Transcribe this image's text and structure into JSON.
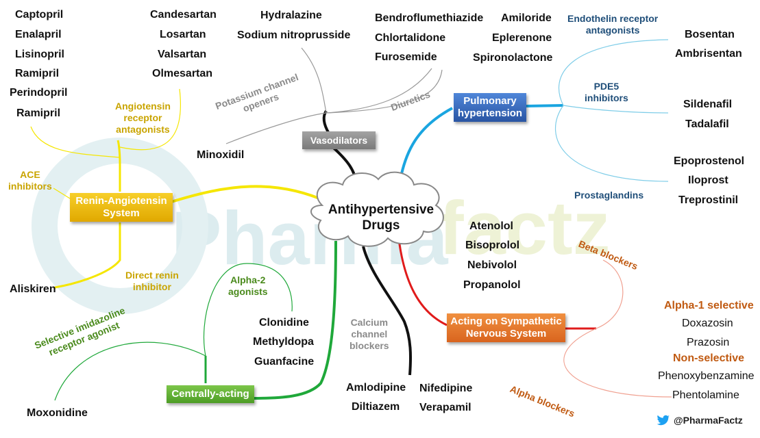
{
  "center": {
    "line1": "Antihypertensive",
    "line2": "Drugs"
  },
  "watermark": {
    "left": "Pharma",
    "right": "factz"
  },
  "credit": "@PharmaFactz",
  "colors": {
    "yellow": "#f5e600",
    "gray_box": "#8c8c8c",
    "blue_box": "#2f5fae",
    "orange_box": "#e8742a",
    "green_box": "#5aae2e",
    "gold_box": "#e8b400",
    "black": "#111111",
    "cyan": "#1aa5e0",
    "red": "#e01b1b",
    "green_line": "#1fa83a"
  },
  "raas": {
    "box": {
      "line1": "Renin-Angiotensin",
      "line2": "System"
    },
    "ace": {
      "label": "ACE inhibitors",
      "l1": "ACE",
      "l2": "inhibitors",
      "drugs": [
        "Captopril",
        "Enalapril",
        "Lisinopril",
        "Ramipril",
        "Perindopril",
        "Ramipril"
      ]
    },
    "arb": {
      "l1": "Angiotensin",
      "l2": "receptor",
      "l3": "antagonists",
      "drugs": [
        "Candesartan",
        "Losartan",
        "Valsartan",
        "Olmesartan"
      ]
    },
    "renin": {
      "l1": "Direct renin",
      "l2": "inhibitor",
      "drugs": [
        "Aliskiren"
      ]
    }
  },
  "vasodilators": {
    "box": "Vasodilators",
    "direct": [
      "Hydralazine",
      "Sodium nitroprusside"
    ],
    "k_channel": {
      "l1": "Potassium channel",
      "l2": "openers",
      "drugs": [
        "Minoxidil"
      ]
    }
  },
  "diuretics": {
    "label": "Diuretics",
    "col1": [
      "Bendroflumethiazide",
      "Chlortalidone",
      "Furosemide"
    ],
    "col2": [
      "Amiloride",
      "Eplerenone",
      "Spironolactone"
    ]
  },
  "pulmonary": {
    "box": {
      "line1": "Pulmonary",
      "line2": "hypertension"
    },
    "endothelin": {
      "l1": "Endothelin receptor",
      "l2": "antagonists",
      "drugs": [
        "Bosentan",
        "Ambrisentan"
      ]
    },
    "pde5": {
      "l1": "PDE5",
      "l2": "inhibitors",
      "drugs": [
        "Sildenafil",
        "Tadalafil"
      ]
    },
    "prostaglandins": {
      "label": "Prostaglandins",
      "drugs": [
        "Epoprostenol",
        "Iloprost",
        "Treprostinil"
      ]
    }
  },
  "sympathetic": {
    "box": {
      "line1": "Acting on Sympathetic",
      "line2": "Nervous System"
    },
    "beta": {
      "label": "Beta blockers",
      "drugs": [
        "Atenolol",
        "Bisoprolol",
        "Nebivolol",
        "Propanolol"
      ]
    },
    "alpha": {
      "label": "Alpha blockers",
      "selective_label": "Alpha-1 selective",
      "selective": [
        "Doxazosin",
        "Prazosin"
      ],
      "nonselective_label": "Non-selective",
      "nonselective": [
        "Phenoxybenzamine",
        "Phentolamine"
      ]
    }
  },
  "calcium": {
    "l1": "Calcium",
    "l2": "channel",
    "l3": "blockers",
    "col1": [
      "Amlodipine",
      "Diltiazem"
    ],
    "col2": [
      "Nifedipine",
      "Verapamil"
    ]
  },
  "central": {
    "box": "Centrally-acting",
    "alpha2": {
      "l1": "Alpha-2",
      "l2": "agonists",
      "drugs": [
        "Clonidine",
        "Methyldopa",
        "Guanfacine"
      ]
    },
    "imidazoline": {
      "l1": "Selective imidazoline",
      "l2": "receptor agonist",
      "drugs": [
        "Moxonidine"
      ]
    }
  }
}
